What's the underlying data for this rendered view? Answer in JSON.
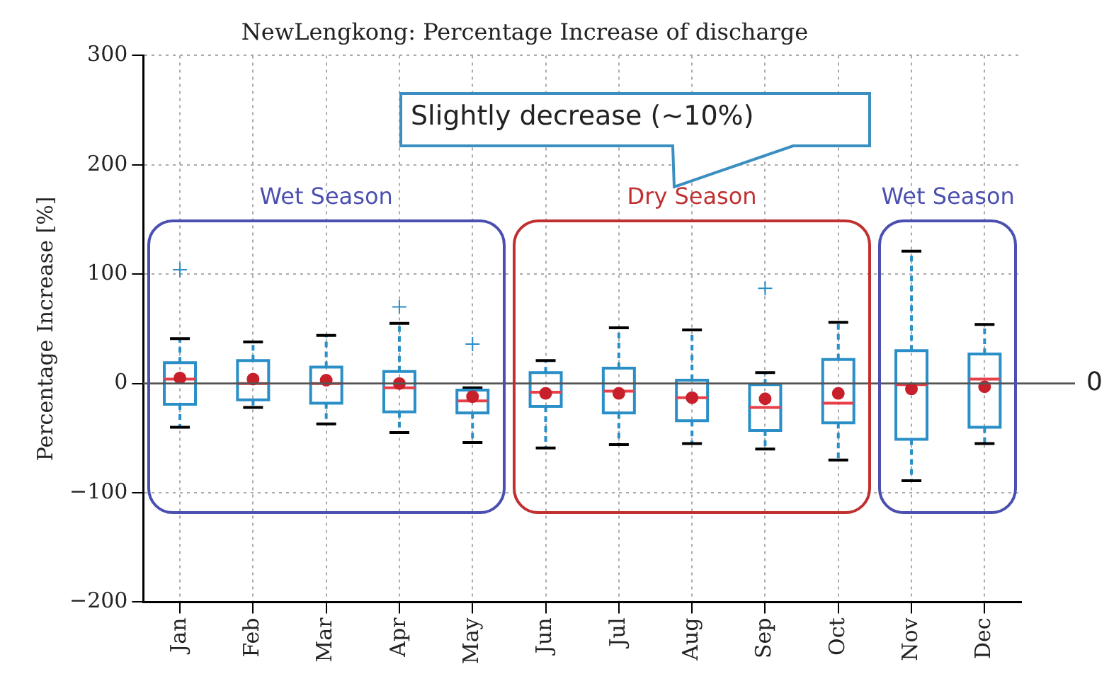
{
  "chart_data": {
    "type": "box",
    "title": "NewLengkong: Percentage Increase of discharge",
    "ylabel": "Percentage Increase [%]",
    "categories": [
      "Jan",
      "Feb",
      "Mar",
      "Apr",
      "May",
      "Jun",
      "Jul",
      "Aug",
      "Sep",
      "Oct",
      "Nov",
      "Dec"
    ],
    "series": [
      {
        "color": "#2a8fc7",
        "boxes": [
          {
            "low": -40,
            "q1": -19,
            "median": 4,
            "q3": 19,
            "high": 41,
            "mean": 5,
            "outliers": [
              104
            ]
          },
          {
            "low": -22,
            "q1": -15,
            "median": 0,
            "q3": 21,
            "high": 38,
            "mean": 4
          },
          {
            "low": -37,
            "q1": -18,
            "median": 0,
            "q3": 15,
            "high": 44,
            "mean": 3
          },
          {
            "low": -45,
            "q1": -26,
            "median": -4,
            "q3": 11,
            "high": 55,
            "mean": 0,
            "outliers": [
              70
            ]
          },
          {
            "low": -54,
            "q1": -27,
            "median": -16,
            "q3": -6,
            "high": -4,
            "mean": -12,
            "outliers": [
              36
            ]
          },
          {
            "low": -59,
            "q1": -21,
            "median": -8,
            "q3": 10,
            "high": 21,
            "mean": -9
          },
          {
            "low": -56,
            "q1": -27,
            "median": -7,
            "q3": 14,
            "high": 51,
            "mean": -9
          },
          {
            "low": -55,
            "q1": -34,
            "median": -13,
            "q3": 3,
            "high": 49,
            "mean": -13
          },
          {
            "low": -60,
            "q1": -43,
            "median": -22,
            "q3": -1,
            "high": 10,
            "mean": -14,
            "outliers": [
              87
            ]
          },
          {
            "low": -70,
            "q1": -36,
            "median": -18,
            "q3": 22,
            "high": 56,
            "mean": -9
          },
          {
            "low": -89,
            "q1": -51,
            "median": -1,
            "q3": 30,
            "high": 121,
            "mean": -5
          },
          {
            "low": -55,
            "q1": -40,
            "median": 4,
            "q3": 27,
            "high": 54,
            "mean": -3
          }
        ]
      }
    ],
    "ylim": [
      -200,
      300
    ],
    "yticks": [
      {
        "value": -200,
        "label": "−200"
      },
      {
        "value": -100,
        "label": "−100"
      },
      0,
      100,
      200,
      300
    ],
    "grid": true,
    "legend": false,
    "ref_lines": [
      {
        "axis": "y",
        "value": 0,
        "label": "0"
      }
    ],
    "annotations": [
      "Slightly decrease (~10%)",
      "Wet Season",
      "Dry Season",
      "Wet Season"
    ]
  }
}
